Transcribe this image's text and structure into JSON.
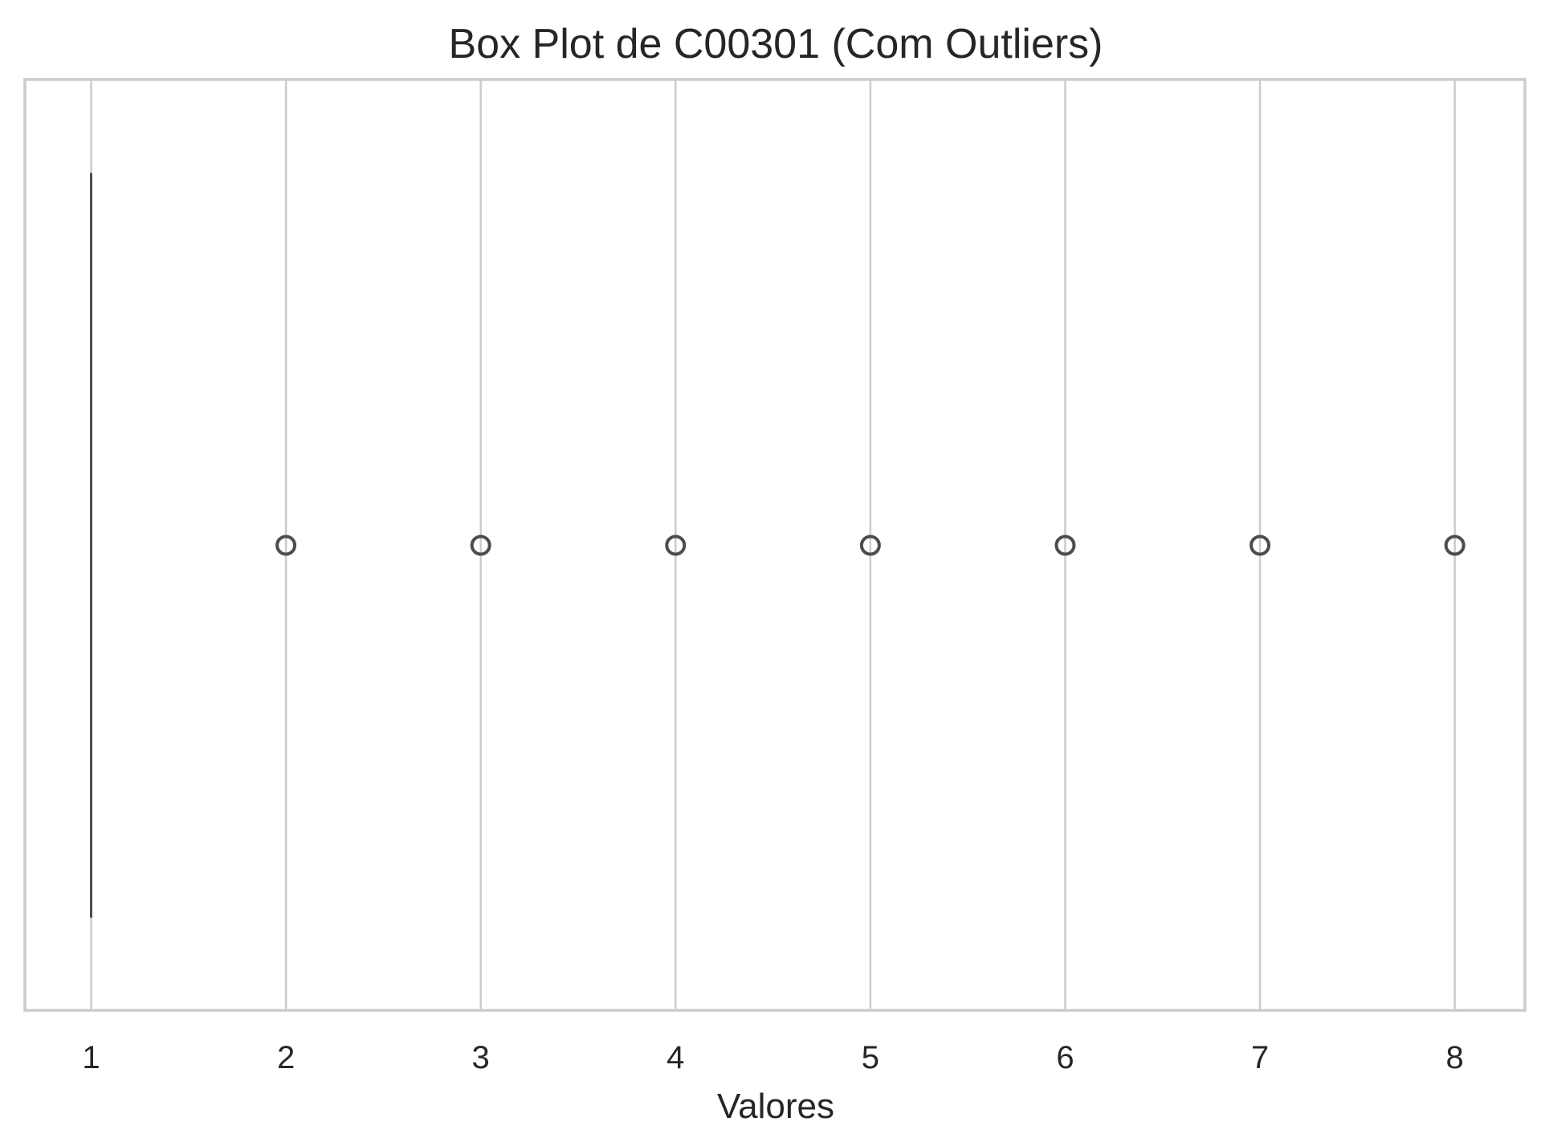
{
  "chart_data": {
    "type": "box",
    "orientation": "horizontal",
    "title": "Box Plot de C00301 (Com Outliers)",
    "xlabel": "Valores",
    "ylabel": "",
    "xlim": [
      0.66,
      8.36
    ],
    "xticks": [
      "1",
      "2",
      "3",
      "4",
      "5",
      "6",
      "7",
      "8"
    ],
    "xtick_values": [
      1,
      2,
      3,
      4,
      5,
      6,
      7,
      8
    ],
    "grid": "vertical",
    "box": {
      "min": 1,
      "q1": 1,
      "median": 1,
      "q3": 1,
      "max": 1
    },
    "outliers": [
      2,
      3,
      4,
      5,
      6,
      7,
      8
    ],
    "colors": {
      "box_line": "#4d4d4d",
      "outlier": "#4d4d4d",
      "grid": "#cccccc",
      "frame": "#cccccc",
      "text": "#262626"
    }
  }
}
